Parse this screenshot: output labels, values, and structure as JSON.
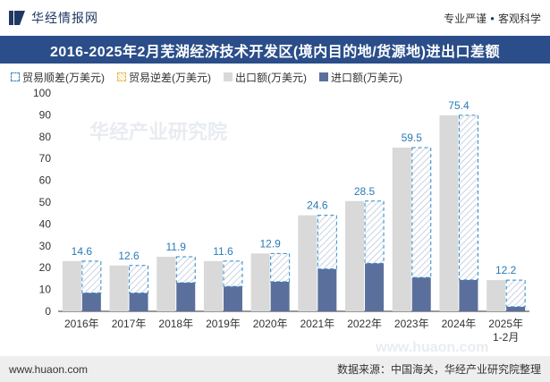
{
  "header": {
    "brand_name": "华经情报网",
    "tagline_left": "专业严谨",
    "tagline_dot": "●",
    "tagline_right": "客观科学"
  },
  "title": "2016-2025年2月芜湖经济技术开发区(境内目的地/货源地)进出口差额",
  "legend": {
    "surplus": "贸易顺差(万美元)",
    "deficit": "贸易逆差(万美元)",
    "export": "出口额(万美元)",
    "import": "进口额(万美元)"
  },
  "footer": {
    "site": "www.huaon.com",
    "source": "数据来源：中国海关，华经产业研究院整理"
  },
  "watermarks": [
    "华经产业研究院",
    "www.huaon.com"
  ],
  "colors": {
    "title_bg": "#2b4e8a",
    "export": "#d9d9d9",
    "import": "#5b6f9c",
    "surplus_border": "#2f8ac9",
    "label": "#2a7ab5"
  },
  "chart_data": {
    "type": "bar",
    "title": "2016-2025年2月芜湖经济技术开发区(境内目的地/货源地)进出口差额",
    "categories": [
      "2016年",
      "2017年",
      "2018年",
      "2019年",
      "2020年",
      "2021年",
      "2022年",
      "2023年",
      "2024年",
      "2025年\n1-2月"
    ],
    "ylim": [
      0,
      100
    ],
    "yticks": [
      0,
      10,
      20,
      30,
      40,
      50,
      60,
      70,
      80,
      90,
      100
    ],
    "grid": false,
    "legend_position": "top-left",
    "series": [
      {
        "name": "出口额(万美元)",
        "values": [
          23.0,
          21.0,
          25.0,
          23.0,
          26.5,
          44.0,
          50.5,
          75.0,
          89.8,
          14.3
        ]
      },
      {
        "name": "进口额(万美元)",
        "values": [
          8.4,
          8.4,
          13.1,
          11.4,
          13.6,
          19.4,
          22.0,
          15.5,
          14.4,
          2.1
        ]
      },
      {
        "name": "贸易顺差(万美元)",
        "values": [
          14.6,
          12.6,
          11.9,
          11.6,
          12.9,
          24.6,
          28.5,
          59.5,
          75.4,
          12.2
        ]
      }
    ]
  }
}
